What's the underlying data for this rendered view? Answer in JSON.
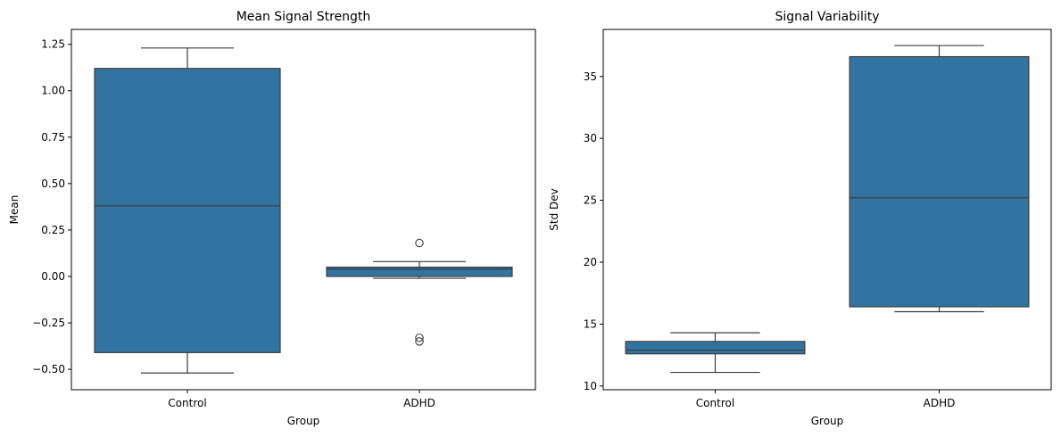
{
  "colors": {
    "box_fill": "#3274a1",
    "line": "#3d3d3d",
    "axis": "#000000",
    "background": "#ffffff"
  },
  "chart_data": [
    {
      "type": "box",
      "title": "Mean Signal Strength",
      "xlabel": "Group",
      "ylabel": "Mean",
      "categories": [
        "Control",
        "ADHD"
      ],
      "ylim": [
        -0.61,
        1.33
      ],
      "yticks": [
        -0.5,
        -0.25,
        0.0,
        0.25,
        0.5,
        0.75,
        1.0,
        1.25
      ],
      "ytick_labels": [
        "−0.50",
        "−0.25",
        "0.00",
        "0.25",
        "0.50",
        "0.75",
        "1.00",
        "1.25"
      ],
      "grid": false,
      "boxes": [
        {
          "category": "Control",
          "whisker_low": -0.52,
          "q1": -0.41,
          "median": 0.38,
          "q3": 1.12,
          "whisker_high": 1.23,
          "outliers": []
        },
        {
          "category": "ADHD",
          "whisker_low": -0.01,
          "q1": 0.0,
          "median": 0.04,
          "q3": 0.05,
          "whisker_high": 0.08,
          "outliers": [
            0.18,
            -0.33,
            -0.35
          ]
        }
      ]
    },
    {
      "type": "box",
      "title": "Signal Variability",
      "xlabel": "Group",
      "ylabel": "Std Dev",
      "categories": [
        "Control",
        "ADHD"
      ],
      "ylim": [
        9.7,
        38.8
      ],
      "yticks": [
        10,
        15,
        20,
        25,
        30,
        35
      ],
      "ytick_labels": [
        "10",
        "15",
        "20",
        "25",
        "30",
        "35"
      ],
      "grid": false,
      "boxes": [
        {
          "category": "Control",
          "whisker_low": 11.1,
          "q1": 12.6,
          "median": 12.9,
          "q3": 13.6,
          "whisker_high": 14.3,
          "outliers": []
        },
        {
          "category": "ADHD",
          "whisker_low": 16.0,
          "q1": 16.4,
          "median": 25.2,
          "q3": 36.6,
          "whisker_high": 37.5,
          "outliers": []
        }
      ]
    }
  ]
}
